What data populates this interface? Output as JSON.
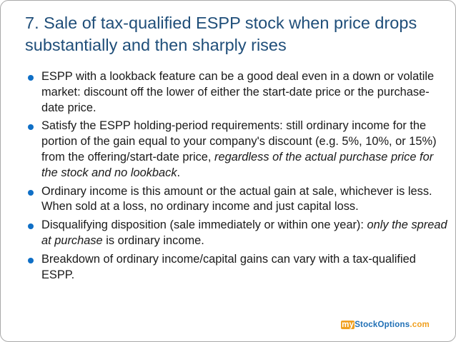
{
  "slide": {
    "title": "7. Sale of tax-qualified ESPP stock when price drops substantially and then sharply rises"
  },
  "bullets": [
    {
      "text": "ESPP with a lookback feature can be a good deal even in a down or volatile market: discount off the lower of either the start-date price or the purchase-date price."
    },
    {
      "text_before": "Satisfy the ESPP holding-period requirements: still ordinary income for the portion of the gain equal to your company's discount (e.g. 5%, 10%, or 15%) from the offering/start-date price, ",
      "italic": "regardless of the actual purchase price for the stock and no lookback",
      "text_after": "."
    },
    {
      "text": "Ordinary income is this amount or the actual gain at sale, whichever is less. When sold at a loss, no ordinary income and just capital loss."
    },
    {
      "text_before": "Disqualifying disposition (sale immediately or within one year): ",
      "italic": "only the spread at purchase",
      "text_after": " is ordinary income."
    },
    {
      "text": "Breakdown of ordinary income/capital gains can vary with a tax-qualified ESPP."
    }
  ],
  "branding": {
    "my": "my",
    "stock": "StockOptions",
    "dotcom": ".com"
  },
  "colors": {
    "title": "#1f4e79",
    "bullet_marker": "#0f6fc6",
    "brand_orange": "#f0a020",
    "brand_blue": "#1f6fb5"
  },
  "icons": {
    "bullet_marker": "filled-circle"
  }
}
